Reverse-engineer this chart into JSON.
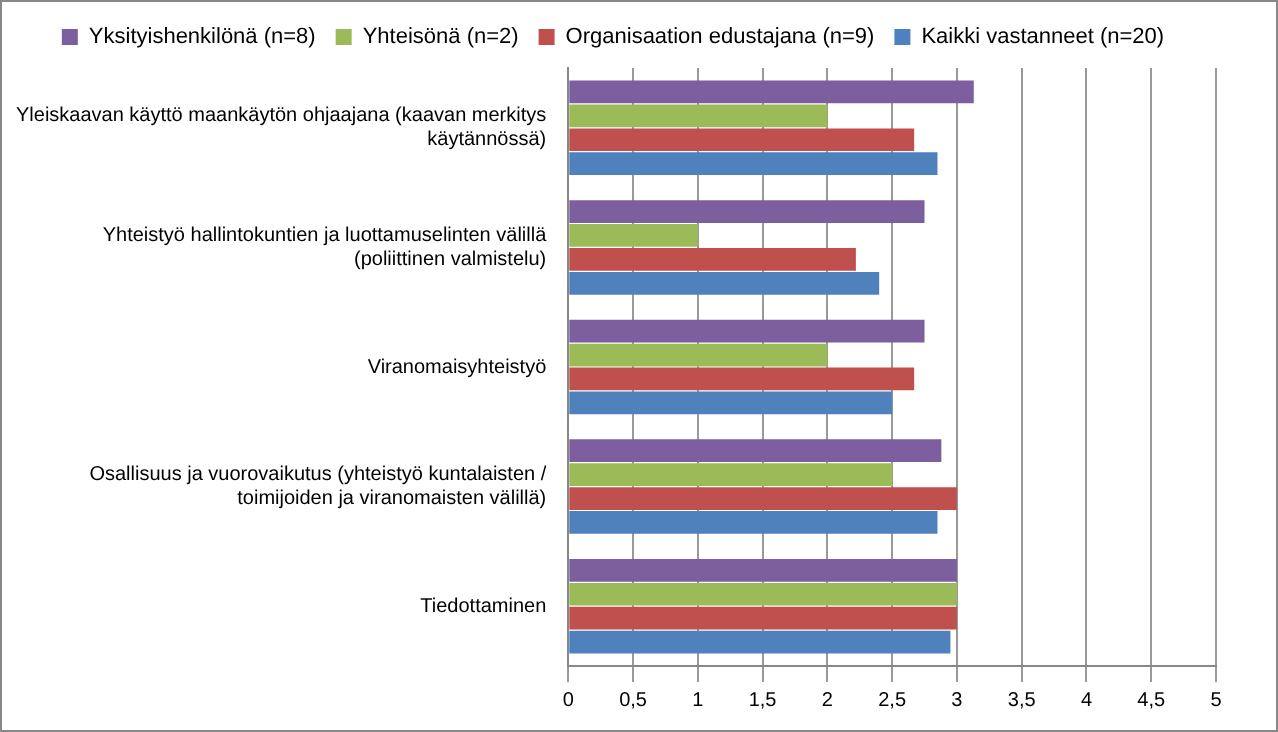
{
  "chart_data": {
    "type": "bar",
    "orientation": "horizontal",
    "categories": [
      "Yleiskaavan käyttö maankäytön ohjaajana (kaavan merkitys käytännössä)",
      "Yhteistyö hallintokuntien ja luottamuselinten välillä (poliittinen valmistelu)",
      "Viranomaisyhteistyö",
      "Osallisuus ja vuorovaikutus (yhteistyö kuntalaisten / toimijoiden ja viranomaisten välillä)",
      "Tiedottaminen"
    ],
    "series": [
      {
        "name": "Yksityishenkilönä (n=8)",
        "color": "#7d5fa0",
        "values": [
          3.13,
          2.75,
          2.75,
          2.88,
          3.0
        ]
      },
      {
        "name": "Yhteisönä (n=2)",
        "color": "#9bbb59",
        "values": [
          2.0,
          1.0,
          2.0,
          2.5,
          3.0
        ]
      },
      {
        "name": "Organisaation edustajana (n=9)",
        "color": "#c0504d",
        "values": [
          2.67,
          2.22,
          2.67,
          3.0,
          3.0
        ]
      },
      {
        "name": "Kaikki vastanneet (n=20)",
        "color": "#4f81bd",
        "values": [
          2.85,
          2.4,
          2.5,
          2.85,
          2.95
        ]
      }
    ],
    "xlim": [
      0,
      5
    ],
    "xticks": [
      0,
      {
        "value": 0.5,
        "label": "0,5"
      },
      1,
      {
        "value": 1.5,
        "label": "1,5"
      },
      2,
      {
        "value": 2.5,
        "label": "2,5"
      },
      3,
      {
        "value": 3.5,
        "label": "3,5"
      },
      4,
      {
        "value": 4.5,
        "label": "4,5"
      },
      5
    ],
    "grid": "x",
    "legend": "top"
  }
}
